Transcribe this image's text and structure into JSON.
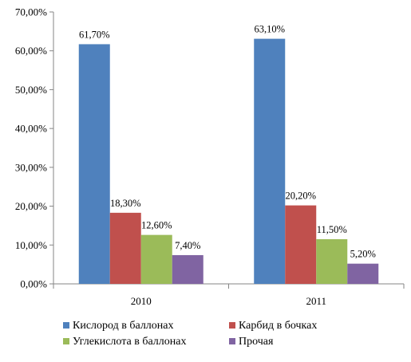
{
  "chart_data": {
    "type": "bar",
    "categories": [
      "2010",
      "2011"
    ],
    "series": [
      {
        "name": "Кислород в баллонах",
        "values": [
          61.7,
          63.1
        ],
        "labels": [
          "61,70%",
          "63,10%"
        ],
        "color": "#4F81BD"
      },
      {
        "name": "Карбид в бочках",
        "values": [
          18.3,
          20.2
        ],
        "labels": [
          "18,30%",
          "20,20%"
        ],
        "color": "#C0504D"
      },
      {
        "name": "Углекислота в баллонах",
        "values": [
          12.6,
          11.5
        ],
        "labels": [
          "12,60%",
          "11,50%"
        ],
        "color": "#9BBB59"
      },
      {
        "name": "Прочая",
        "values": [
          7.4,
          5.2
        ],
        "labels": [
          "7,40%",
          "5,20%"
        ],
        "color": "#8064A2"
      }
    ],
    "ylim": [
      0,
      70
    ],
    "yticks": [
      "0,00%",
      "10,00%",
      "20,00%",
      "30,00%",
      "40,00%",
      "50,00%",
      "60,00%",
      "70,00%"
    ],
    "title": "",
    "xlabel": "",
    "ylabel": "",
    "grid": false,
    "legend_position": "bottom"
  }
}
